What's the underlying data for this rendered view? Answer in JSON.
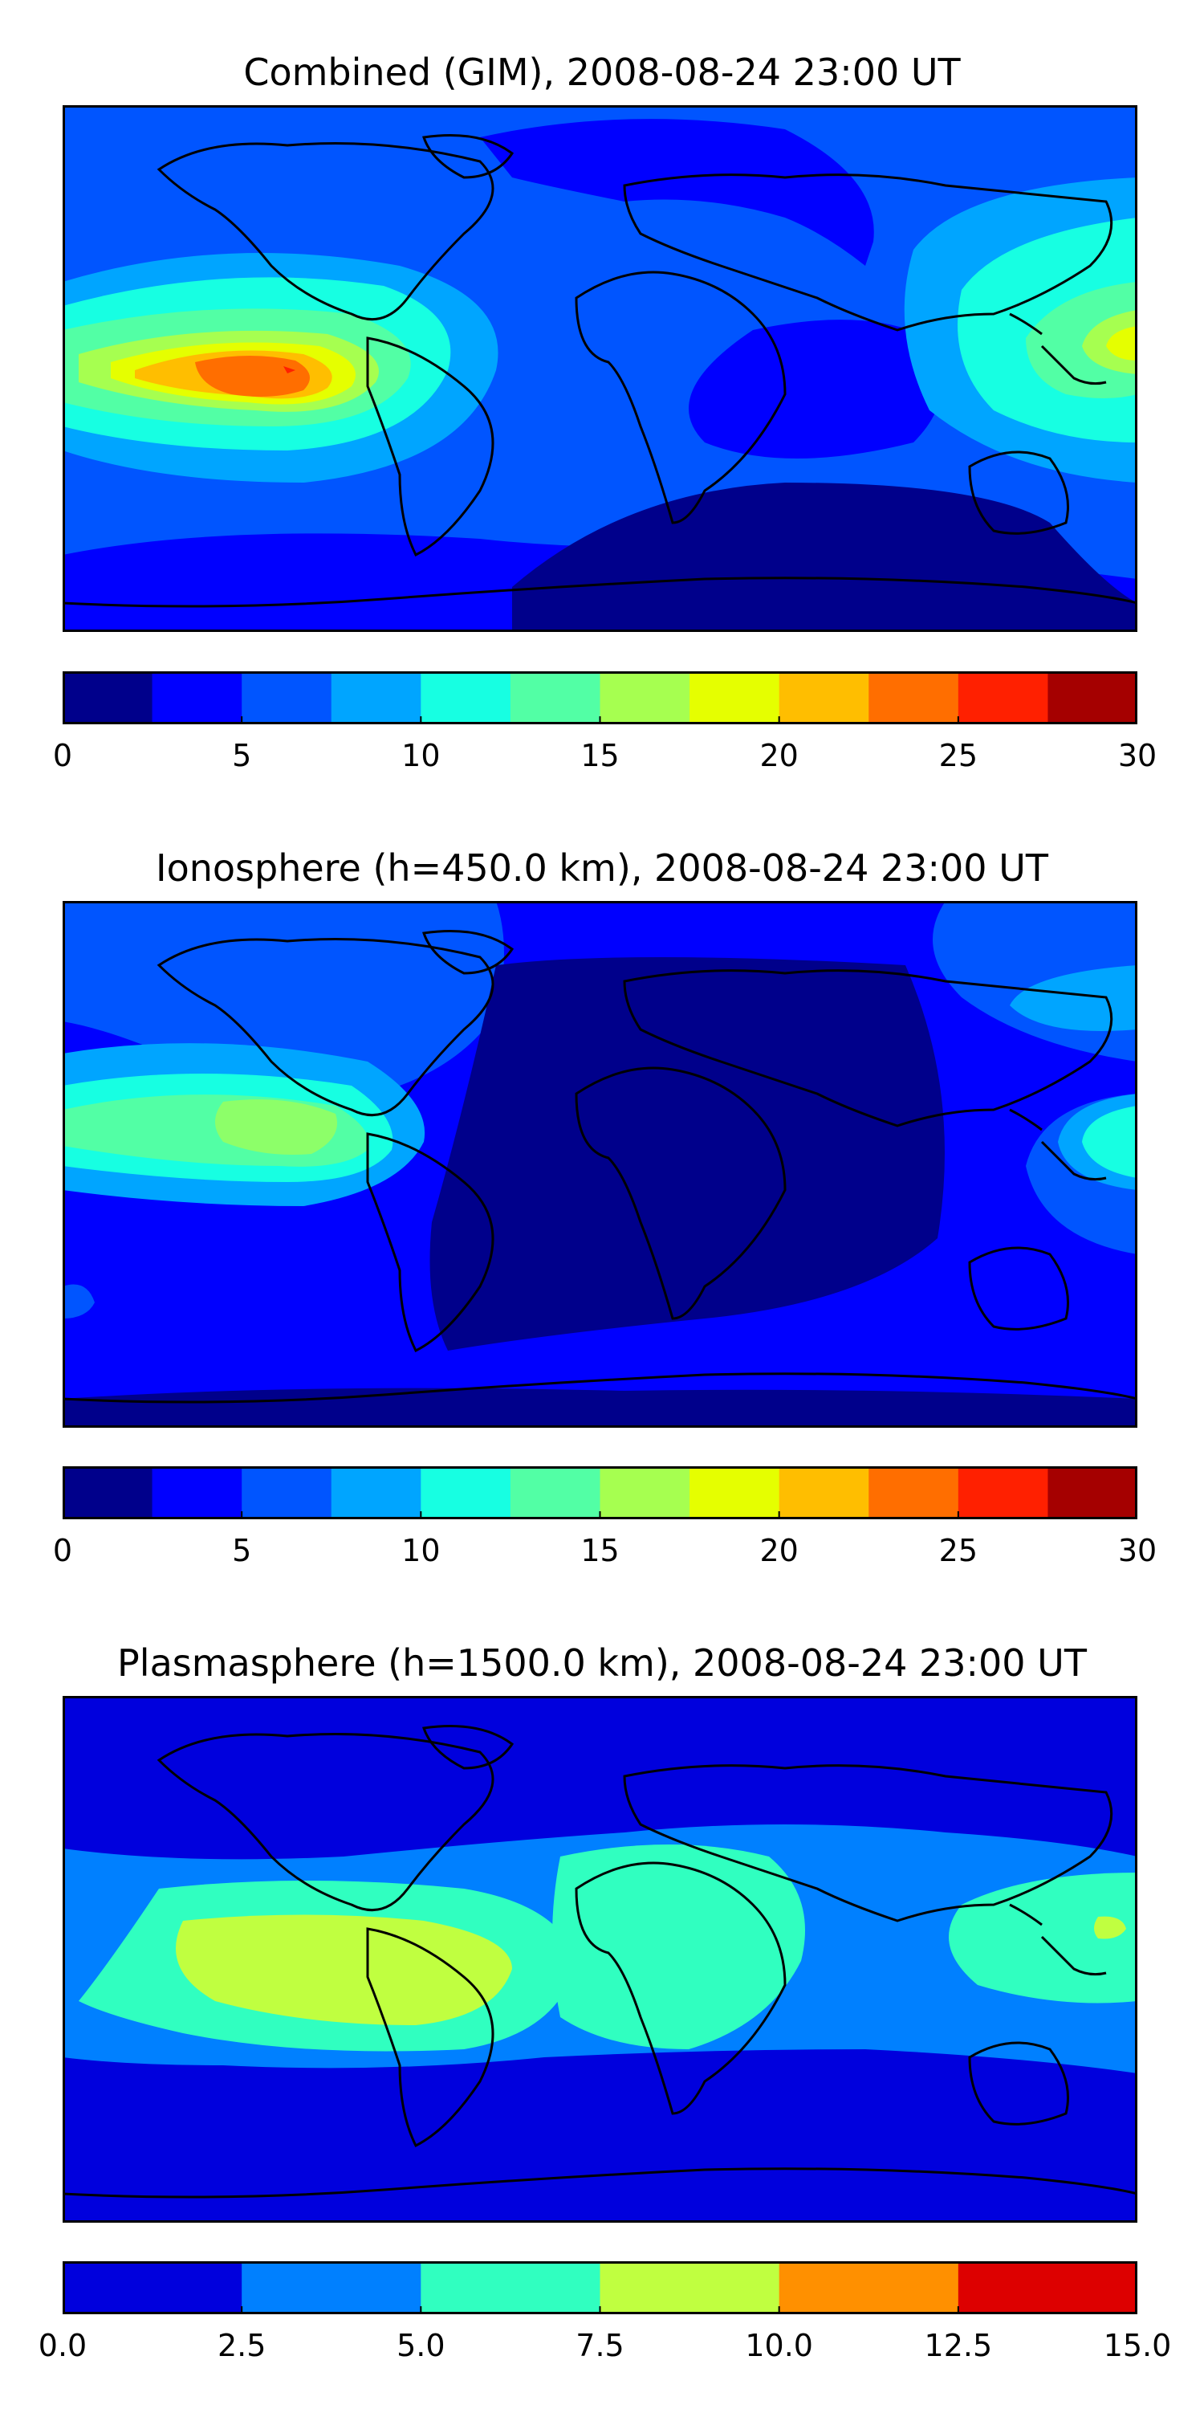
{
  "panels": [
    {
      "title": "Combined (GIM), 2008-08-24 23:00 UT",
      "colorbar": {
        "min": 0,
        "max": 30,
        "ticks": [
          "0",
          "5",
          "10",
          "15",
          "20",
          "25",
          "30"
        ],
        "colors": [
          "#00008b",
          "#0000ff",
          "#0055ff",
          "#00a5ff",
          "#17ffe2",
          "#52ffa5",
          "#a6ff50",
          "#e5ff00",
          "#ffbe00",
          "#ff6e00",
          "#ff2000",
          "#a50000"
        ]
      }
    },
    {
      "title": "Ionosphere  (h=450.0 km), 2008-08-24 23:00 UT",
      "colorbar": {
        "min": 0,
        "max": 30,
        "ticks": [
          "0",
          "5",
          "10",
          "15",
          "20",
          "25",
          "30"
        ],
        "colors": [
          "#00008b",
          "#0000ff",
          "#0055ff",
          "#00a5ff",
          "#17ffe2",
          "#52ffa5",
          "#a6ff50",
          "#e5ff00",
          "#ffbe00",
          "#ff6e00",
          "#ff2000",
          "#a50000"
        ]
      }
    },
    {
      "title": "Plasmasphere (h=1500.0 km), 2008-08-24 23:00 UT",
      "colorbar": {
        "min": 0,
        "max": 15,
        "ticks": [
          "0.0",
          "2.5",
          "5.0",
          "7.5",
          "10.0",
          "12.5",
          "15.0"
        ],
        "colors": [
          "#0000dd",
          "#0080ff",
          "#30ffc0",
          "#c0ff40",
          "#ff9000",
          "#dd0000"
        ]
      }
    }
  ]
}
